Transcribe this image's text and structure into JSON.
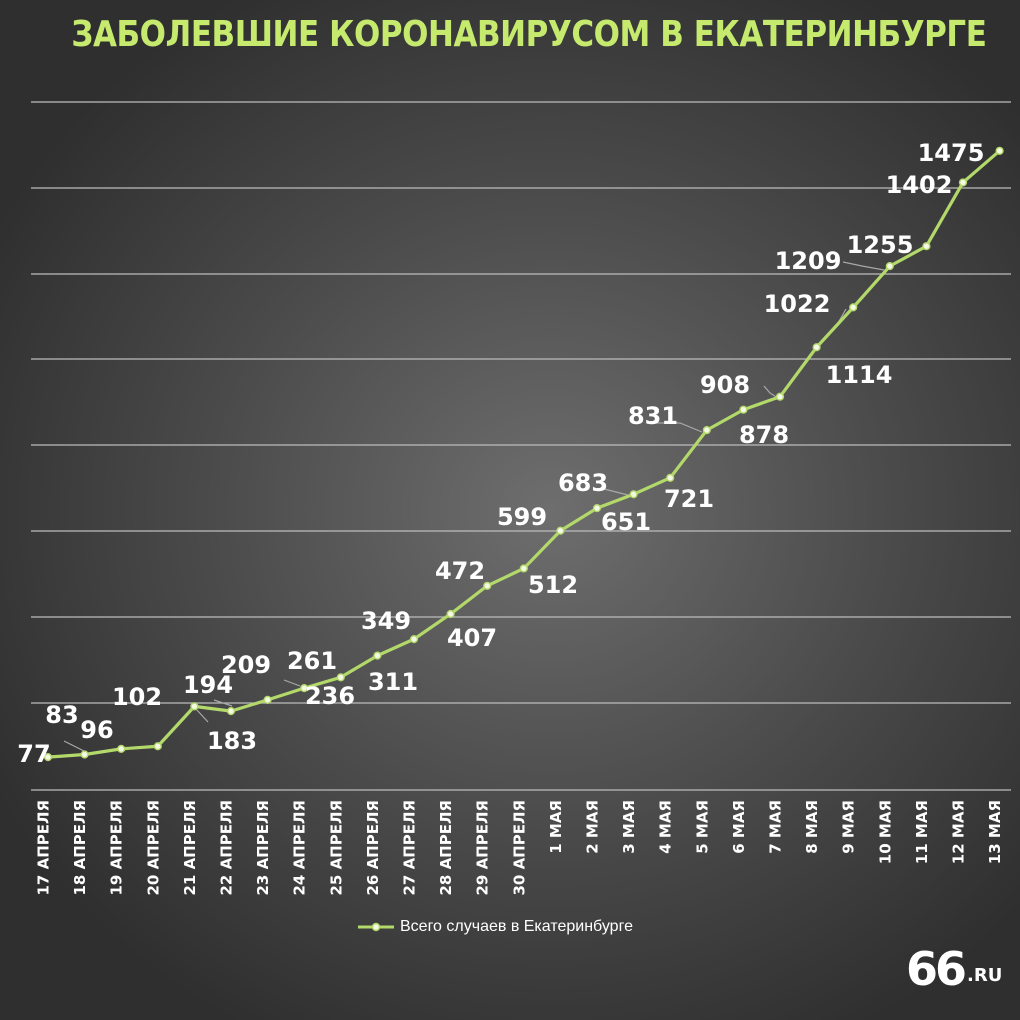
{
  "chart_data": {
    "type": "line",
    "title": "ЗАБОЛЕВШИЕ КОРОНАВИРУСОМ В ЕКАТЕРИНБУРГЕ",
    "categories": [
      "17 АПРЕЛЯ",
      "18 АПРЕЛЯ",
      "19 АПРЕЛЯ",
      "20 АПРЕЛЯ",
      "21 АПРЕЛЯ",
      "22 АПРЕЛЯ",
      "23 АПРЕЛЯ",
      "24 АПРЕЛЯ",
      "25 АПРЕЛЯ",
      "26 АПРЕЛЯ",
      "27 АПРЕЛЯ",
      "28 АПРЕЛЯ",
      "29 АПРЕЛЯ",
      "30 АПРЕЛЯ",
      "1 МАЯ",
      "2 МАЯ",
      "3 МАЯ",
      "4 МАЯ",
      "5 МАЯ",
      "6 МАЯ",
      "7 МАЯ",
      "8 МАЯ",
      "9 МАЯ",
      "10 МАЯ",
      "11 МАЯ",
      "12 МАЯ",
      "13 МАЯ"
    ],
    "series": [
      {
        "name": "Всего случаев в Екатеринбурге",
        "values": [
          77,
          83,
          96,
          102,
          194,
          183,
          209,
          236,
          261,
          311,
          349,
          407,
          472,
          512,
          599,
          651,
          683,
          721,
          831,
          878,
          908,
          1022,
          1114,
          1209,
          1255,
          1402,
          1475
        ]
      }
    ],
    "ylim": [
      0,
      1600
    ],
    "grid": true,
    "legend_position": "bottom-center",
    "colors": {
      "line": "#b3d96b",
      "title": "#c6ea6e",
      "text": "#ffffff",
      "grid": "#bdbdbd"
    }
  },
  "logo": {
    "big": "66",
    "small": ".RU"
  }
}
